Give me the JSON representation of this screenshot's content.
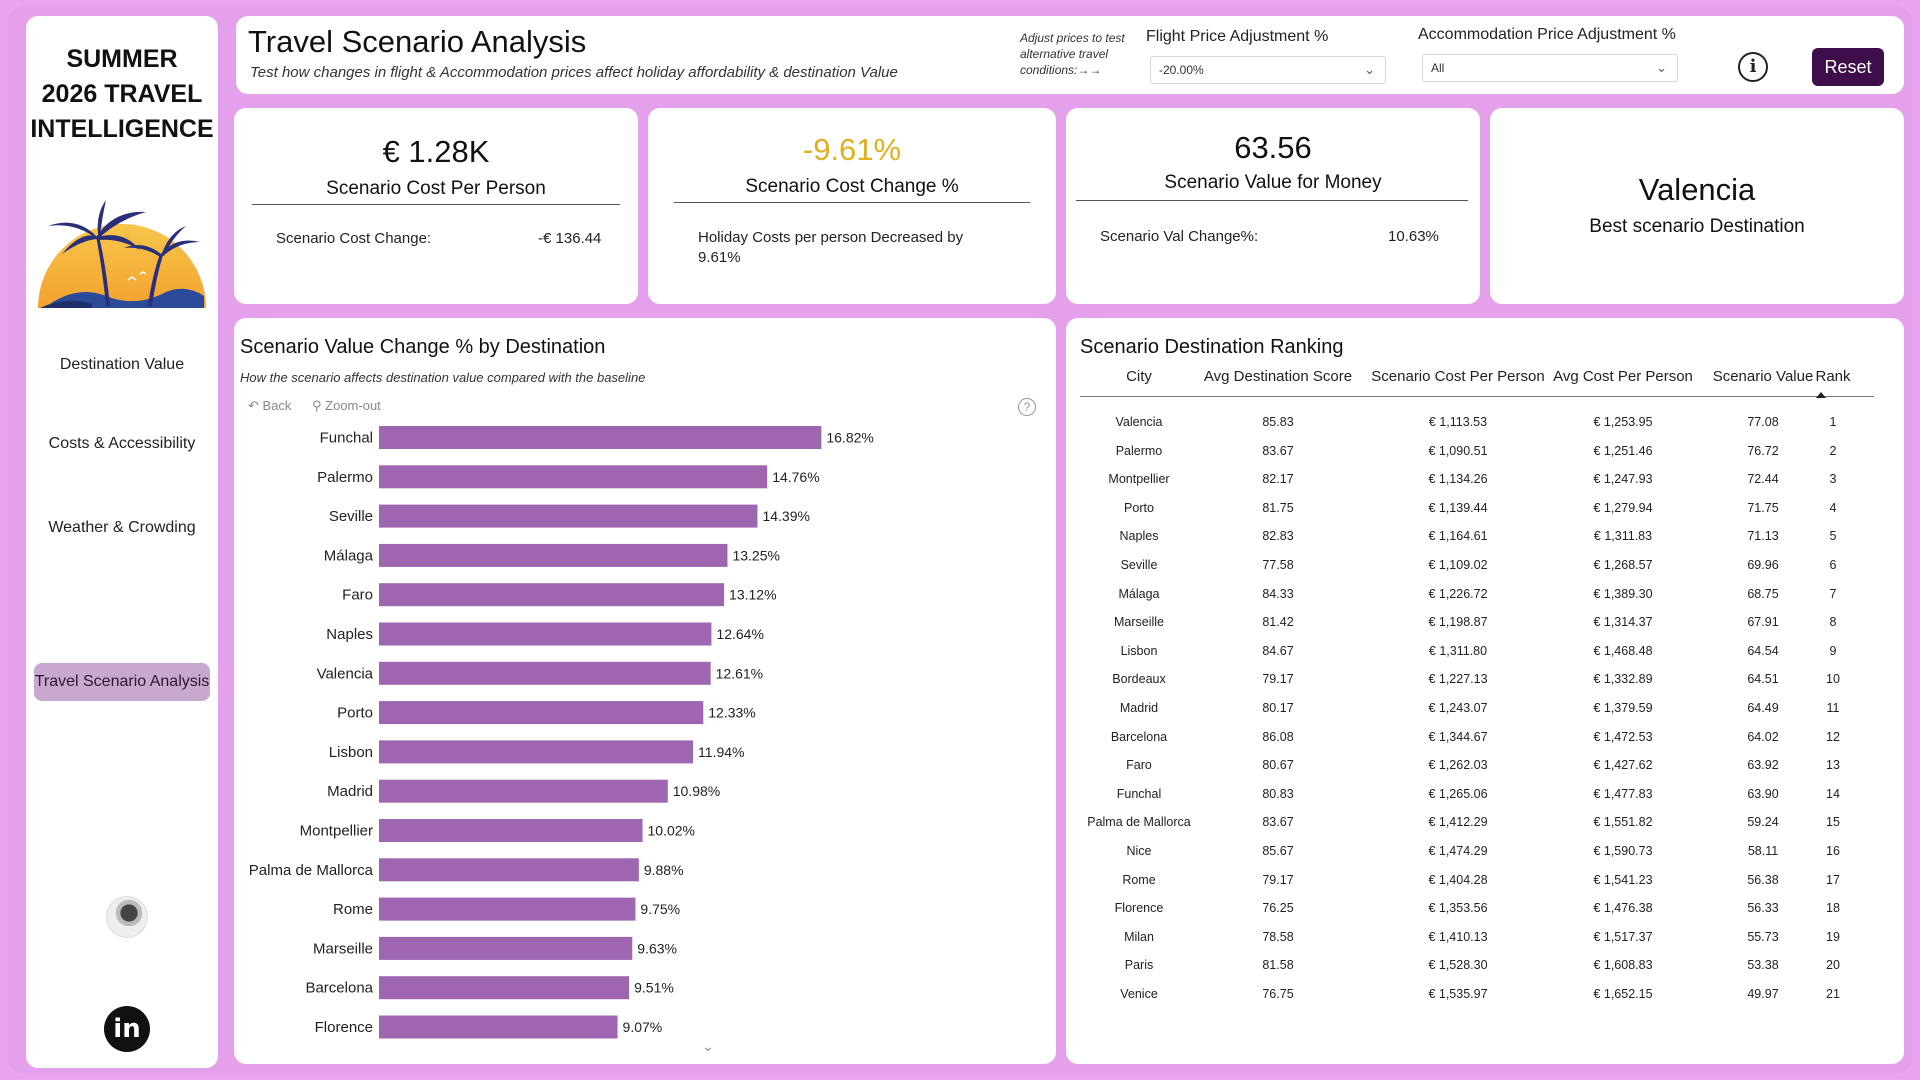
{
  "sidebar": {
    "brand": [
      "SUMMER",
      "2026 TRAVEL",
      "INTELLIGENCE"
    ],
    "nav": [
      "Destination Value",
      "Costs & Accessibility",
      "Weather & Crowding",
      "Travel Scenario Analysis"
    ],
    "active_nav": "Travel Scenario Analysis",
    "linkedin_label": "in"
  },
  "header": {
    "title": "Travel Scenario Analysis",
    "subtitle": "Test how changes in flight & Accommodation prices affect holiday  affordability & destination Value",
    "note": "Adjust prices to test alternative travel conditions:→→",
    "flight_label": "Flight Price Adjustment %",
    "flight_value": "-20.00%",
    "accom_label": "Accommodation Price Adjustment %",
    "accom_value": "All",
    "info_label": "i",
    "reset_label": "Reset"
  },
  "kpis": {
    "cost_pp": {
      "value": "€ 1.28K",
      "label": "Scenario Cost Per Person",
      "foot_label": "Scenario Cost Change:",
      "foot_value": "-€ 136.44"
    },
    "cost_change": {
      "value": "-9.61%",
      "label": "Scenario Cost Change %",
      "foot": "Holiday Costs per person Decreased by 9.61%",
      "color": "#e0b020"
    },
    "value_money": {
      "value": "63.56",
      "label": "Scenario Value for Money",
      "foot_label": "Scenario Val Change%:",
      "foot_value": "10.63%"
    },
    "best": {
      "value": "Valencia",
      "label": "Best scenario Destination"
    }
  },
  "chart": {
    "title": "Scenario Value Change % by Destination",
    "subtitle": "How the scenario affects destination value compared with the baseline",
    "back_label": "Back",
    "zoom_label": "Zoom-out",
    "help_label": "?",
    "bar_color": "#9e66b0"
  },
  "chart_data": {
    "type": "bar",
    "orientation": "horizontal",
    "title": "Scenario Value Change % by Destination",
    "categories": [
      "Funchal",
      "Palermo",
      "Seville",
      "Málaga",
      "Faro",
      "Naples",
      "Valencia",
      "Porto",
      "Lisbon",
      "Madrid",
      "Montpellier",
      "Palma de Mallorca",
      "Rome",
      "Marseille",
      "Barcelona",
      "Florence"
    ],
    "values": [
      16.82,
      14.76,
      14.39,
      13.25,
      13.12,
      12.64,
      12.61,
      12.33,
      11.94,
      10.98,
      10.02,
      9.88,
      9.75,
      9.63,
      9.51,
      9.07
    ],
    "labels": [
      "16.82%",
      "14.76%",
      "14.39%",
      "13.25%",
      "13.12%",
      "12.64%",
      "12.61%",
      "12.33%",
      "11.94%",
      "10.98%",
      "10.02%",
      "9.88%",
      "9.75%",
      "9.63%",
      "9.51%",
      "9.07%"
    ],
    "xlim": [
      0,
      20
    ],
    "grid": false
  },
  "table": {
    "title": "Scenario Destination Ranking",
    "columns": [
      "City",
      "Avg Destination Score",
      "Scenario Cost Per Person",
      "Avg Cost Per Person",
      "Scenario Value",
      "Rank"
    ],
    "rows": [
      [
        "Valencia",
        "85.83",
        "€ 1,113.53",
        "€ 1,253.95",
        "77.08",
        "1"
      ],
      [
        "Palermo",
        "83.67",
        "€ 1,090.51",
        "€ 1,251.46",
        "76.72",
        "2"
      ],
      [
        "Montpellier",
        "82.17",
        "€ 1,134.26",
        "€ 1,247.93",
        "72.44",
        "3"
      ],
      [
        "Porto",
        "81.75",
        "€ 1,139.44",
        "€ 1,279.94",
        "71.75",
        "4"
      ],
      [
        "Naples",
        "82.83",
        "€ 1,164.61",
        "€ 1,311.83",
        "71.13",
        "5"
      ],
      [
        "Seville",
        "77.58",
        "€ 1,109.02",
        "€ 1,268.57",
        "69.96",
        "6"
      ],
      [
        "Málaga",
        "84.33",
        "€ 1,226.72",
        "€ 1,389.30",
        "68.75",
        "7"
      ],
      [
        "Marseille",
        "81.42",
        "€ 1,198.87",
        "€ 1,314.37",
        "67.91",
        "8"
      ],
      [
        "Lisbon",
        "84.67",
        "€ 1,311.80",
        "€ 1,468.48",
        "64.54",
        "9"
      ],
      [
        "Bordeaux",
        "79.17",
        "€ 1,227.13",
        "€ 1,332.89",
        "64.51",
        "10"
      ],
      [
        "Madrid",
        "80.17",
        "€ 1,243.07",
        "€ 1,379.59",
        "64.49",
        "11"
      ],
      [
        "Barcelona",
        "86.08",
        "€ 1,344.67",
        "€ 1,472.53",
        "64.02",
        "12"
      ],
      [
        "Faro",
        "80.67",
        "€ 1,262.03",
        "€ 1,427.62",
        "63.92",
        "13"
      ],
      [
        "Funchal",
        "80.83",
        "€ 1,265.06",
        "€ 1,477.83",
        "63.90",
        "14"
      ],
      [
        "Palma de Mallorca",
        "83.67",
        "€ 1,412.29",
        "€ 1,551.82",
        "59.24",
        "15"
      ],
      [
        "Nice",
        "85.67",
        "€ 1,474.29",
        "€ 1,590.73",
        "58.11",
        "16"
      ],
      [
        "Rome",
        "79.17",
        "€ 1,404.28",
        "€ 1,541.23",
        "56.38",
        "17"
      ],
      [
        "Florence",
        "76.25",
        "€ 1,353.56",
        "€ 1,476.38",
        "56.33",
        "18"
      ],
      [
        "Milan",
        "78.58",
        "€ 1,410.13",
        "€ 1,517.37",
        "55.73",
        "19"
      ],
      [
        "Paris",
        "81.58",
        "€ 1,528.30",
        "€ 1,608.83",
        "53.38",
        "20"
      ],
      [
        "Venice",
        "76.75",
        "€ 1,535.97",
        "€ 1,652.15",
        "49.97",
        "21"
      ]
    ]
  }
}
